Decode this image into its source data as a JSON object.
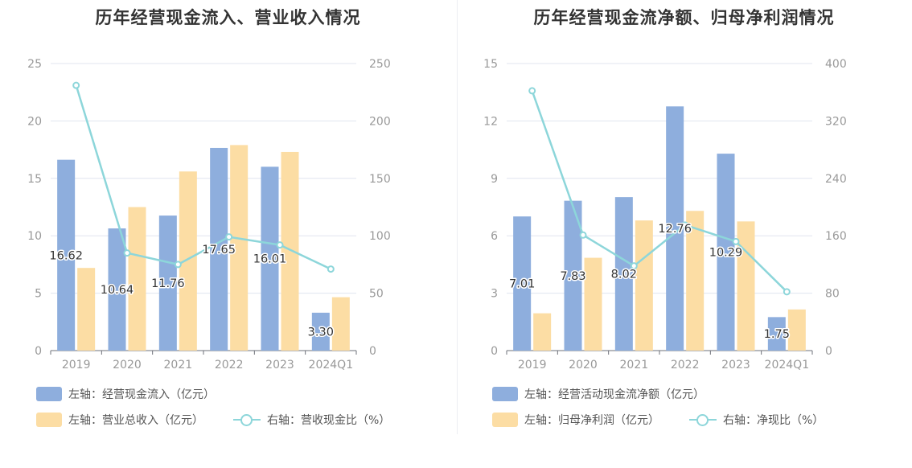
{
  "charts": [
    {
      "title": "历年经营现金流入、营业收入情况",
      "legend": [
        {
          "label": "左轴：经营现金流入（亿元）",
          "type": "bar",
          "color": "#8eaedd"
        },
        {
          "label": "左轴：营业总收入（亿元）",
          "type": "bar",
          "color": "#fcdda4"
        },
        {
          "label": "右轴：营收现金比（%）",
          "type": "line",
          "color": "#8dd6da"
        }
      ]
    },
    {
      "title": "历年经营现金流净额、归母净利润情况",
      "legend": [
        {
          "label": "左轴：经营活动现金流净额（亿元）",
          "type": "bar",
          "color": "#8eaedd"
        },
        {
          "label": "左轴：归母净利润（亿元）",
          "type": "bar",
          "color": "#fcdda4"
        },
        {
          "label": "右轴：净现比（%）",
          "type": "line",
          "color": "#8dd6da"
        }
      ]
    }
  ],
  "chart_data": [
    {
      "type": "bar",
      "title": "历年经营现金流入、营业收入情况",
      "categories": [
        "2019",
        "2020",
        "2021",
        "2022",
        "2023",
        "2024Q1"
      ],
      "y_left": {
        "min": 0,
        "max": 25,
        "ticks": [
          "0",
          "5",
          "10",
          "15",
          "20",
          "25"
        ]
      },
      "y_right": {
        "min": 0,
        "max": 250,
        "ticks": [
          "0",
          "50",
          "100",
          "150",
          "200",
          "250"
        ]
      },
      "grid": true,
      "legend_position": "bottom",
      "series": [
        {
          "name": "左轴：经营现金流入（亿元）",
          "type": "bar",
          "axis": "left",
          "color": "#8eaedd",
          "values": [
            16.62,
            10.64,
            11.76,
            17.65,
            16.01,
            3.3
          ],
          "labels": [
            "16.62",
            "10.64",
            "11.76",
            "17.65",
            "16.01",
            "3.30"
          ]
        },
        {
          "name": "左轴：营业总收入（亿元）",
          "type": "bar",
          "axis": "left",
          "color": "#fcdda4",
          "values": [
            7.2,
            12.5,
            15.6,
            17.9,
            17.3,
            4.65
          ]
        },
        {
          "name": "右轴：营收现金比（%）",
          "type": "line",
          "axis": "right",
          "color": "#8dd6da",
          "values": [
            231,
            85,
            75,
            99,
            92,
            71
          ]
        }
      ]
    },
    {
      "type": "bar",
      "title": "历年经营现金流净额、归母净利润情况",
      "categories": [
        "2019",
        "2020",
        "2021",
        "2022",
        "2023",
        "2024Q1"
      ],
      "y_left": {
        "min": 0,
        "max": 15,
        "ticks": [
          "0",
          "3",
          "6",
          "9",
          "12",
          "15"
        ]
      },
      "y_right": {
        "min": 0,
        "max": 400,
        "ticks": [
          "0",
          "80",
          "160",
          "240",
          "320",
          "400"
        ]
      },
      "grid": true,
      "legend_position": "bottom",
      "series": [
        {
          "name": "左轴：经营活动现金流净额（亿元）",
          "type": "bar",
          "axis": "left",
          "color": "#8eaedd",
          "values": [
            7.01,
            7.83,
            8.02,
            12.76,
            10.29,
            1.75
          ],
          "labels": [
            "7.01",
            "7.83",
            "8.02",
            "12.76",
            "10.29",
            "1.75"
          ]
        },
        {
          "name": "左轴：归母净利润（亿元）",
          "type": "bar",
          "axis": "left",
          "color": "#fcdda4",
          "values": [
            1.95,
            4.85,
            6.8,
            7.3,
            6.75,
            2.15
          ]
        },
        {
          "name": "右轴：净现比（%）",
          "type": "line",
          "axis": "right",
          "color": "#8dd6da",
          "values": [
            362,
            161,
            118,
            175,
            152,
            82
          ]
        }
      ]
    }
  ]
}
